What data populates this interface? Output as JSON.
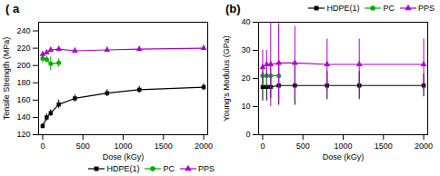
{
  "chart_data": [
    {
      "type": "line",
      "title": "( a",
      "xlabel": "Dose (kGy)",
      "ylabel": "Tensile Strength (MPa)",
      "xlim": [
        -50,
        2050
      ],
      "ylim": [
        120,
        250
      ],
      "xticks": [
        0,
        500,
        1000,
        1500,
        2000
      ],
      "yticks": [
        120,
        140,
        160,
        180,
        200,
        220,
        240
      ],
      "grid": false,
      "legend": "lower right",
      "series": [
        {
          "name": "HDPE(1)",
          "color": "#000000",
          "marker": "square",
          "x": [
            0,
            50,
            100,
            200,
            400,
            800,
            1200,
            2000
          ],
          "values": [
            130,
            140,
            145,
            155,
            162,
            168,
            172,
            175
          ],
          "yerr": [
            3,
            4,
            4,
            5,
            4,
            4,
            4,
            4
          ]
        },
        {
          "name": "PC",
          "color": "#00aa00",
          "marker": "circle",
          "x": [
            0,
            50,
            100,
            200
          ],
          "values": [
            208,
            207,
            202,
            203
          ],
          "yerr": [
            5,
            4,
            8,
            5
          ]
        },
        {
          "name": "PPS",
          "color": "#aa00cc",
          "marker": "triangle",
          "x": [
            0,
            50,
            100,
            200,
            400,
            800,
            1200,
            2000
          ],
          "values": [
            213,
            215,
            218,
            219,
            217,
            218,
            219,
            220
          ],
          "yerr": [
            3,
            3,
            3,
            3,
            3,
            3,
            3,
            3
          ]
        }
      ]
    },
    {
      "type": "line",
      "title": "(b)",
      "xlabel": "Dose (kGy)",
      "ylabel": "Young's Modulus (GPa)",
      "xlim": [
        -50,
        2050
      ],
      "ylim": [
        0,
        40
      ],
      "xticks": [
        0,
        500,
        1000,
        1500,
        2000
      ],
      "yticks": [
        0,
        10,
        20,
        30,
        40
      ],
      "grid": false,
      "legend": "upper right",
      "series": [
        {
          "name": "HDPE(1)",
          "color": "#000000",
          "marker": "square",
          "x": [
            0,
            50,
            100,
            200,
            400,
            800,
            1200,
            2000
          ],
          "values": [
            17,
            17,
            17,
            17.5,
            17.5,
            17.5,
            17.5,
            17.5
          ],
          "yerr": [
            5,
            5,
            4,
            7,
            7,
            5,
            5,
            4
          ]
        },
        {
          "name": "PC",
          "color": "#00aa00",
          "marker": "circle",
          "x": [
            0,
            50,
            100,
            200
          ],
          "values": [
            21,
            21,
            21,
            21
          ],
          "yerr": [
            4,
            4,
            5,
            5
          ]
        },
        {
          "name": "PPS",
          "color": "#aa00cc",
          "marker": "triangle",
          "x": [
            0,
            50,
            100,
            200,
            400,
            800,
            1200,
            2000
          ],
          "values": [
            24,
            25,
            25,
            25.5,
            25.5,
            25,
            25,
            25
          ],
          "yerr": [
            6,
            5,
            15,
            14,
            13,
            9,
            9,
            9
          ]
        }
      ]
    }
  ]
}
